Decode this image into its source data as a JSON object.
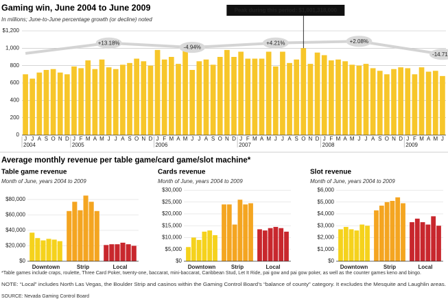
{
  "chart_data": [
    {
      "type": "bar",
      "title": "Gaming win, June 2004 to June 2009",
      "subtitle": "In millions; June-to-June percentage growth (or decline) noted",
      "categories": [
        "J",
        "J",
        "A",
        "S",
        "O",
        "N",
        "D",
        "J",
        "F",
        "M",
        "A",
        "M",
        "J",
        "J",
        "A",
        "S",
        "O",
        "N",
        "D",
        "J",
        "F",
        "M",
        "A",
        "M",
        "J",
        "J",
        "A",
        "S",
        "O",
        "N",
        "D",
        "J",
        "F",
        "M",
        "A",
        "M",
        "J",
        "J",
        "A",
        "S",
        "O",
        "N",
        "D",
        "J",
        "F",
        "M",
        "A",
        "M",
        "J",
        "J",
        "A",
        "S",
        "O",
        "N",
        "D",
        "J",
        "F",
        "M",
        "A",
        "M",
        "J"
      ],
      "years": [
        "2004",
        "2005",
        "2006",
        "2007",
        "2008",
        "2009"
      ],
      "values": [
        700,
        650,
        720,
        750,
        760,
        720,
        700,
        790,
        770,
        860,
        760,
        870,
        780,
        760,
        810,
        830,
        880,
        850,
        800,
        980,
        870,
        900,
        820,
        970,
        750,
        850,
        870,
        810,
        900,
        980,
        900,
        960,
        880,
        880,
        880,
        960,
        790,
        960,
        830,
        870,
        1001,
        820,
        950,
        920,
        860,
        870,
        850,
        810,
        800,
        820,
        770,
        740,
        700,
        760,
        780,
        770,
        700,
        780,
        730,
        740,
        680
      ],
      "color": "#f7c62a",
      "trend": [
        940,
        1060,
        1010,
        1060,
        1080,
        930
      ],
      "growth_labels": [
        "+13.18%",
        "-4.94%",
        "+4.21%",
        "+2.08%",
        "-14.71%"
      ],
      "peak_label": "Peak during this period: $1,001,318,000",
      "ylim": [
        0,
        1200
      ],
      "yticks": [
        0,
        200,
        400,
        600,
        800,
        {
          "value": 1000,
          "label": "1,000"
        },
        {
          "value": 1200,
          "label": "$1,200"
        }
      ],
      "grid": true
    },
    {
      "type": "grouped_bar",
      "title": "Table game revenue",
      "subtitle": "Month of June, years 2004 to 2009",
      "series": [
        {
          "name": "Downtown",
          "color": "#f5d21c",
          "values": [
            37000,
            30000,
            27000,
            29000,
            28000,
            26000
          ]
        },
        {
          "name": "Strip",
          "color": "#f4a521",
          "values": [
            65000,
            77000,
            66000,
            85000,
            77000,
            65000
          ]
        },
        {
          "name": "Local",
          "color": "#c8272d",
          "values": [
            21000,
            22000,
            22000,
            24000,
            22000,
            20000
          ]
        }
      ],
      "ylim": [
        0,
        95000
      ],
      "yticks": [
        {
          "value": 0,
          "label": "$0"
        },
        {
          "value": 20000,
          "label": "$20,000"
        },
        {
          "value": 40000,
          "label": "$40,000"
        },
        {
          "value": 60000,
          "label": "$60,000"
        },
        {
          "value": 80000,
          "label": "$80,000"
        }
      ]
    },
    {
      "type": "grouped_bar",
      "title": "Cards revenue",
      "subtitle": "Month of June, years 2004 to 2009",
      "series": [
        {
          "name": "Downtown",
          "color": "#f5d21c",
          "values": [
            6000,
            10000,
            9000,
            12500,
            13000,
            11000
          ]
        },
        {
          "name": "Strip",
          "color": "#f4a521",
          "values": [
            24000,
            24000,
            15500,
            26000,
            24000,
            24500
          ]
        },
        {
          "name": "Local",
          "color": "#c8272d",
          "values": [
            13500,
            13000,
            14000,
            14500,
            14000,
            12500
          ]
        }
      ],
      "ylim": [
        0,
        31000
      ],
      "yticks": [
        {
          "value": 0,
          "label": "$0"
        },
        {
          "value": 5000,
          "label": "$5,000"
        },
        {
          "value": 10000,
          "label": "$10,000"
        },
        {
          "value": 15000,
          "label": "$15,000"
        },
        {
          "value": 20000,
          "label": "$20,000"
        },
        {
          "value": 25000,
          "label": "$25,000"
        },
        {
          "value": 30000,
          "label": "$30,000"
        }
      ]
    },
    {
      "type": "grouped_bar",
      "title": "Slot revenue",
      "subtitle": "Month of June, years 2004 to 2009",
      "series": [
        {
          "name": "Downtown",
          "color": "#f5d21c",
          "values": [
            2700,
            2900,
            2700,
            2600,
            3100,
            3000
          ]
        },
        {
          "name": "Strip",
          "color": "#f4a521",
          "values": [
            4300,
            4700,
            5000,
            5100,
            5400,
            4900
          ]
        },
        {
          "name": "Local",
          "color": "#c8272d",
          "values": [
            3300,
            3600,
            3300,
            3100,
            3800,
            3000
          ]
        }
      ],
      "ylim": [
        0,
        6200
      ],
      "yticks": [
        {
          "value": 0,
          "label": "$0"
        },
        {
          "value": 1000,
          "label": "$1,000"
        },
        {
          "value": 2000,
          "label": "$2,000"
        },
        {
          "value": 3000,
          "label": "$3,000"
        },
        {
          "value": 4000,
          "label": "$4,000"
        },
        {
          "value": 5000,
          "label": "$5,000"
        },
        {
          "value": 6000,
          "label": "$6,000"
        }
      ]
    }
  ],
  "section_title": "Average monthly revenue per table game/card game/slot machine*",
  "notes": [
    "*Table games include craps, roulette, Three Card Poker, twenty-one, baccarat, mini-baccarat, Caribbean Stud, Let It Ride, pai gow and pai gow poker, as well as the counter games keno and bingo.",
    "NOTE: “Local” includes North Las Vegas, the Boulder Strip and casinos within the Gaming Control Board’s “balance of county” category. It excludes the Mesquite and Laughlin areas.",
    "SOURCE: Nevada Gaming Control Board"
  ]
}
